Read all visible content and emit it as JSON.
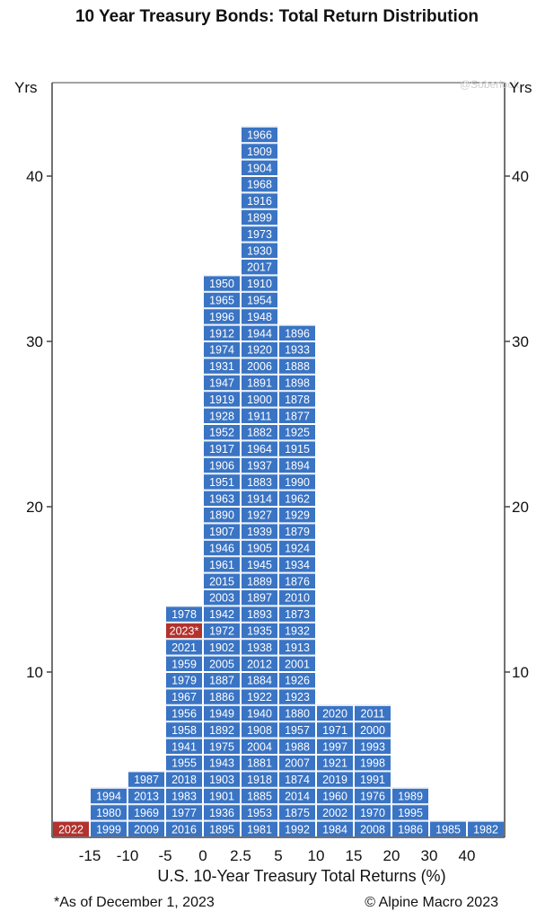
{
  "chart_data": {
    "type": "bar",
    "title": "10 Year Treasury Bonds: Total Return Distribution",
    "ylabel_left": "Yrs",
    "ylabel_right": "Yrs",
    "xlabel": "U.S. 10-Year Treasury Total Returns (%)",
    "y_ticks": [
      10,
      20,
      30,
      40
    ],
    "ylim": [
      0,
      45
    ],
    "x_tick_labels": [
      "-15",
      "-10",
      "-5",
      "0",
      "2.5",
      "5",
      "10",
      "15",
      "20",
      "30",
      "40"
    ],
    "grid": false,
    "colors": {
      "bar": "#3a74c4",
      "highlight": "#b2322e",
      "axis": "#444444"
    },
    "bins": [
      {
        "range": "< -15",
        "count": 1,
        "years": [
          "2022"
        ],
        "highlight": [
          "2022"
        ]
      },
      {
        "range": "-15 to -10",
        "count": 3,
        "years": [
          "1999",
          "1980",
          "1994"
        ]
      },
      {
        "range": "-10 to -5",
        "count": 4,
        "years": [
          "2009",
          "1969",
          "2013",
          "1987"
        ]
      },
      {
        "range": "-5 to 0",
        "count": 14,
        "years": [
          "2016",
          "1977",
          "1983",
          "2018",
          "1955",
          "1941",
          "1958",
          "1956",
          "1967",
          "1979",
          "1959",
          "2021",
          "2023*",
          "1978"
        ],
        "highlight": [
          "2023*"
        ]
      },
      {
        "range": "0 to 2.5",
        "count": 34,
        "years": [
          "1895",
          "1936",
          "1901",
          "1903",
          "1943",
          "1975",
          "1892",
          "1949",
          "1886",
          "1887",
          "2005",
          "1902",
          "1972",
          "1942",
          "2003",
          "2015",
          "1961",
          "1946",
          "1907",
          "1890",
          "1963",
          "1951",
          "1906",
          "1917",
          "1952",
          "1928",
          "1919",
          "1947",
          "1931",
          "1974",
          "1912",
          "1996",
          "1965",
          "1950"
        ]
      },
      {
        "range": "2.5 to 5",
        "count": 43,
        "years": [
          "1981",
          "1953",
          "1885",
          "1918",
          "1881",
          "2004",
          "1908",
          "1940",
          "1922",
          "1884",
          "2012",
          "1938",
          "1935",
          "1893",
          "1897",
          "1889",
          "1945",
          "1905",
          "1939",
          "1927",
          "1914",
          "1883",
          "1937",
          "1964",
          "1882",
          "1911",
          "1900",
          "1891",
          "2006",
          "1920",
          "1944",
          "1948",
          "1954",
          "1910",
          "2017",
          "1930",
          "1973",
          "1899",
          "1916",
          "1968",
          "1904",
          "1909",
          "1966"
        ]
      },
      {
        "range": "5 to 10",
        "count": 31,
        "years": [
          "1992",
          "1875",
          "2014",
          "1874",
          "2007",
          "1988",
          "1957",
          "1880",
          "1923",
          "1926",
          "2001",
          "1913",
          "1932",
          "1873",
          "2010",
          "1876",
          "1934",
          "1924",
          "1879",
          "1929",
          "1962",
          "1990",
          "1894",
          "1915",
          "1925",
          "1877",
          "1878",
          "1898",
          "1888",
          "1933",
          "1896"
        ]
      },
      {
        "range": "10 to 15",
        "count": 8,
        "years": [
          "1984",
          "2002",
          "1960",
          "2019",
          "1921",
          "1997",
          "1971",
          "2020"
        ]
      },
      {
        "range": "15 to 20",
        "count": 8,
        "years": [
          "2008",
          "1970",
          "1976",
          "1991",
          "1998",
          "1993",
          "2000",
          "2011"
        ]
      },
      {
        "range": "20 to 30",
        "count": 3,
        "years": [
          "1986",
          "1995",
          "1989"
        ]
      },
      {
        "range": "30 to 40",
        "count": 1,
        "years": [
          "1985"
        ]
      },
      {
        "range": "> 40",
        "count": 1,
        "years": [
          "1982"
        ]
      }
    ]
  },
  "footnote": "*As of December 1, 2023",
  "credit": "© Alpine Macro 2023",
  "watermark": "@Soberlook"
}
